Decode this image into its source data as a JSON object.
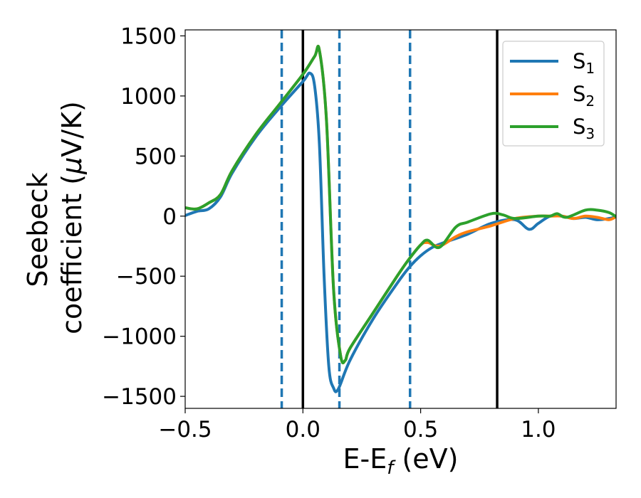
{
  "chart_data": {
    "type": "line",
    "xlabel": {
      "main": "E-E",
      "sub": "f",
      "unit": " (eV)"
    },
    "ylabel": {
      "line1": "Seebeck",
      "line2": "coefficient  (",
      "mu": "μ",
      "line2_end": "V/K)"
    },
    "xlim": [
      -0.5,
      1.33
    ],
    "ylim": [
      -1600,
      1550
    ],
    "xticks": [
      -0.5,
      0.0,
      0.5,
      1.0
    ],
    "xtick_labels": [
      "−0.5",
      "0.0",
      "0.5",
      "1.0"
    ],
    "yticks": [
      -1500,
      -1000,
      -500,
      0,
      500,
      1000,
      1500
    ],
    "ytick_labels": [
      "−1500",
      "−1000",
      "−500",
      "0",
      "500",
      "1000",
      "1500"
    ],
    "grid": false,
    "legend_position": "top-right",
    "vlines": [
      {
        "x": -0.09,
        "style": "dashed",
        "color": "#1f77b4"
      },
      {
        "x": 0.0,
        "style": "solid",
        "color": "#000000"
      },
      {
        "x": 0.155,
        "style": "dashed",
        "color": "#1f77b4"
      },
      {
        "x": 0.455,
        "style": "dashed",
        "color": "#1f77b4"
      },
      {
        "x": 0.825,
        "style": "solid",
        "color": "#000000"
      }
    ],
    "series": [
      {
        "name": "S",
        "sub": "1",
        "color": "#1f77b4",
        "x": [
          -0.5,
          -0.45,
          -0.4,
          -0.35,
          -0.3,
          -0.2,
          -0.1,
          0.0,
          0.03,
          0.05,
          0.07,
          0.09,
          0.11,
          0.13,
          0.15,
          0.2,
          0.3,
          0.4,
          0.45,
          0.5,
          0.55,
          0.6,
          0.7,
          0.8,
          0.9,
          0.96,
          1.0,
          1.05,
          1.1,
          1.15,
          1.2,
          1.25,
          1.3,
          1.33
        ],
        "y": [
          5,
          40,
          60,
          160,
          360,
          660,
          900,
          1120,
          1190,
          1080,
          600,
          -500,
          -1250,
          -1430,
          -1440,
          -1200,
          -850,
          -560,
          -430,
          -330,
          -260,
          -220,
          -150,
          -60,
          -30,
          -110,
          -60,
          0,
          0,
          -20,
          -10,
          -30,
          -20,
          -5
        ]
      },
      {
        "name": "S",
        "sub": "2",
        "color": "#ff7f0e",
        "x": [
          -0.5,
          -0.45,
          -0.4,
          -0.35,
          -0.3,
          -0.2,
          -0.1,
          0.0,
          0.05,
          0.07,
          0.1,
          0.13,
          0.16,
          0.18,
          0.2,
          0.3,
          0.4,
          0.45,
          0.5,
          0.53,
          0.58,
          0.65,
          0.7,
          0.8,
          0.9,
          1.0,
          1.05,
          1.1,
          1.15,
          1.2,
          1.25,
          1.3,
          1.33
        ],
        "y": [
          70,
          60,
          110,
          180,
          380,
          680,
          930,
          1180,
          1330,
          1380,
          800,
          -600,
          -1160,
          -1200,
          -1100,
          -800,
          -500,
          -360,
          -240,
          -220,
          -250,
          -170,
          -130,
          -80,
          -20,
          0,
          0,
          0,
          -20,
          0,
          -10,
          -30,
          -5
        ]
      },
      {
        "name": "S",
        "sub": "3",
        "color": "#2ca02c",
        "x": [
          -0.5,
          -0.45,
          -0.4,
          -0.35,
          -0.3,
          -0.2,
          -0.1,
          0.0,
          0.05,
          0.07,
          0.1,
          0.13,
          0.16,
          0.18,
          0.2,
          0.3,
          0.4,
          0.45,
          0.5,
          0.53,
          0.58,
          0.65,
          0.7,
          0.8,
          0.85,
          0.9,
          1.0,
          1.05,
          1.08,
          1.12,
          1.2,
          1.25,
          1.3,
          1.33
        ],
        "y": [
          70,
          60,
          110,
          180,
          380,
          680,
          930,
          1180,
          1330,
          1380,
          800,
          -600,
          -1160,
          -1200,
          -1100,
          -800,
          -500,
          -360,
          -240,
          -200,
          -260,
          -90,
          -50,
          20,
          10,
          -20,
          0,
          0,
          20,
          -10,
          50,
          50,
          30,
          -5
        ]
      }
    ]
  }
}
